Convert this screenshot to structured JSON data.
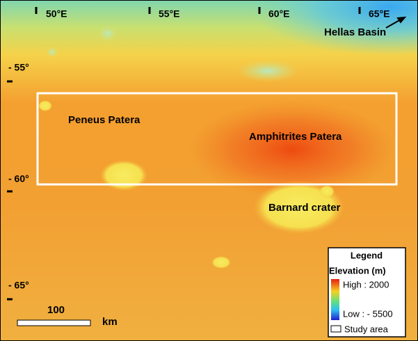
{
  "map": {
    "longitude_labels": [
      "50°E",
      "55°E",
      "60°E",
      "65°E"
    ],
    "latitude_labels": [
      "- 55°",
      "- 60°",
      "- 65°"
    ],
    "annotations": {
      "hellas": "Hellas Basin",
      "peneus": "Peneus Patera",
      "amphitrites": "Amphitrites Patera",
      "barnard": "Barnard crater"
    },
    "scale_bar": {
      "distance": "100",
      "unit": "km"
    },
    "legend": {
      "title": "Legend",
      "subtitle": "Elevation (m)",
      "high": "High : 2000",
      "low": "Low : - 5500",
      "study_area": "Study area"
    }
  }
}
